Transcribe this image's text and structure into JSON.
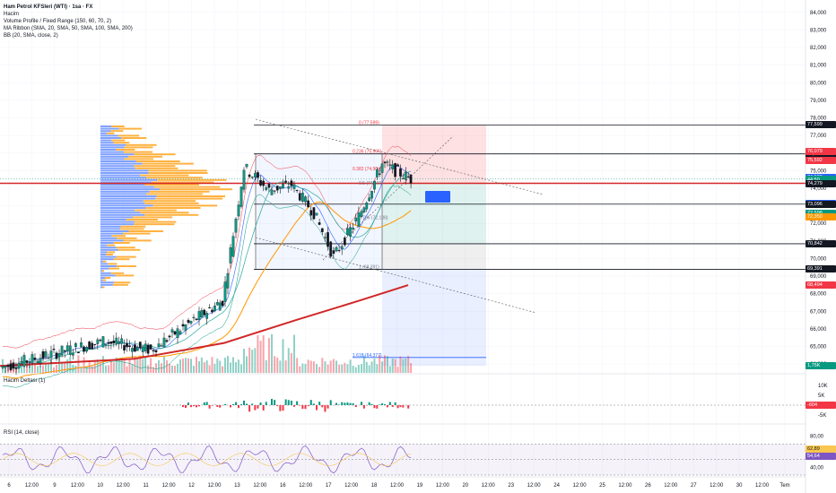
{
  "legend": {
    "title": "Ham Petrol KFSleri (WTI) · 1sa · FX",
    "volume": "Hacim",
    "vp": "Volume Profile / Fixed Range (150, 60, 70, 2)",
    "ribbon": "MA Ribbon (SMA, 20, SMA, 50, SMA, 100, SMA, 200)",
    "bb": "BB (20, SMA, close, 2)"
  },
  "panes": {
    "delta_label": "Hacim Deltası (1)",
    "rsi_label": "RSI (14, close)"
  },
  "price_axis": [
    "84,000",
    "83,000",
    "82,000",
    "81,000",
    "80,000",
    "79,000",
    "78,000",
    "77,000",
    "76,000",
    "75,000",
    "74,000",
    "73,000",
    "72,000",
    "71,000",
    "70,000",
    "69,000",
    "68,000",
    "67,000",
    "66,000",
    "65,000",
    "64,000"
  ],
  "price_tags": [
    {
      "text": "77,599",
      "bg": "#131722"
    },
    {
      "text": "75,954",
      "bg": "#131722"
    },
    {
      "text": "76,079",
      "bg": "#f23645"
    },
    {
      "text": "75,592",
      "bg": "#f23645"
    },
    {
      "text": "74,588",
      "bg": "#2962ff"
    },
    {
      "text": "74,524",
      "bg": "#089981"
    },
    {
      "text": "44:50",
      "bg": "#089981"
    },
    {
      "text": "74,279",
      "bg": "#131722"
    },
    {
      "text": "73,121",
      "bg": "#2962ff"
    },
    {
      "text": "73,096",
      "bg": "#131722"
    },
    {
      "text": "72,598",
      "bg": "#089981"
    },
    {
      "text": "72,350",
      "bg": "#ff9800"
    },
    {
      "text": "70,842",
      "bg": "#131722"
    },
    {
      "text": "69,391",
      "bg": "#131722"
    },
    {
      "text": "68,494",
      "bg": "#f23645"
    },
    {
      "text": "1,75K",
      "bg": "#089981"
    }
  ],
  "delta_axis": [
    "10K",
    "5K",
    "0",
    "-5K"
  ],
  "delta_tag": "-604",
  "rsi_axis": [
    "80,00",
    "60,00",
    "40,00"
  ],
  "rsi_tags": [
    "62,89",
    "54,64"
  ],
  "time_axis": [
    "6",
    "12:00",
    "9",
    "12:00",
    "10",
    "12:00",
    "11",
    "12:00",
    "12",
    "12:00",
    "13",
    "12:00",
    "16",
    "12:00",
    "17",
    "12:00",
    "18",
    "12:00",
    "19",
    "12:00",
    "20",
    "12:00",
    "23",
    "12:00",
    "24",
    "12:00",
    "25",
    "12:00",
    "26",
    "12:00",
    "27",
    "12:00",
    "30",
    "12:00",
    "Tem"
  ],
  "fib_labels": [
    "0 (77,599)",
    "0.236 (75,965)",
    "0.382 (74,964)",
    "0.5 (74,160)",
    "0.786 (72,188)",
    "1 (69,391)",
    "1.618 (64,377)"
  ],
  "chart_data": {
    "type": "candlestick",
    "title": "Ham Petrol KFSleri (WTI) · 1sa · FX",
    "ylim": [
      63.5,
      84.5
    ],
    "levels": {
      "horizontal": [
        77.599,
        75.954,
        74.279,
        73.096,
        70.842,
        69.391
      ],
      "current": 74.524,
      "sma200": 68.494
    },
    "price_path": [
      {
        "x": "6",
        "y": 63.8
      },
      {
        "x": "9",
        "y": 64.6
      },
      {
        "x": "10",
        "y": 65.3
      },
      {
        "x": "11",
        "y": 64.8
      },
      {
        "x": "12",
        "y": 66.6
      },
      {
        "x": "12 12:00",
        "y": 67.6
      },
      {
        "x": "13",
        "y": 75.2
      },
      {
        "x": "13 12:00",
        "y": 73.9
      },
      {
        "x": "16",
        "y": 74.2
      },
      {
        "x": "16 12:00",
        "y": 72.6
      },
      {
        "x": "17",
        "y": 70.1
      },
      {
        "x": "17 12:00",
        "y": 72.4
      },
      {
        "x": "18",
        "y": 75.4
      },
      {
        "x": "18 12:00",
        "y": 74.52
      }
    ],
    "rsi": {
      "values": [
        62.89,
        54.64
      ],
      "ylim": [
        30,
        90
      ]
    },
    "volume_delta": {
      "last": -604
    }
  }
}
